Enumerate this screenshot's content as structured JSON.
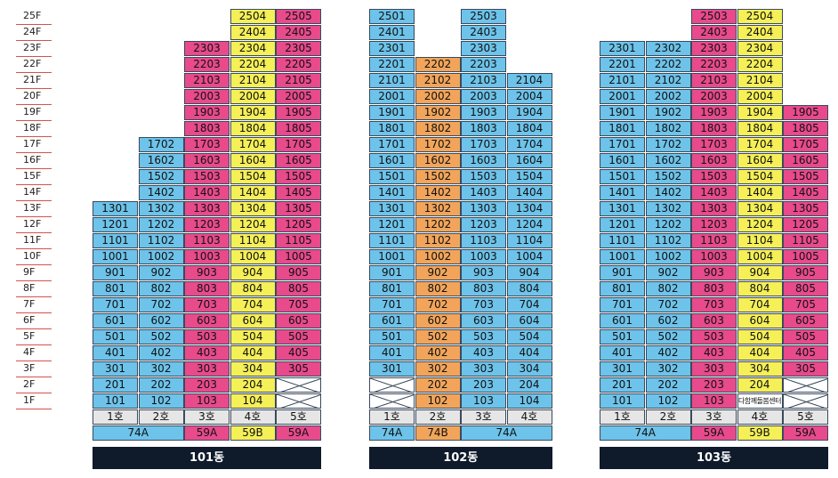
{
  "floors": [
    "25F",
    "24F",
    "23F",
    "22F",
    "21F",
    "20F",
    "19F",
    "18F",
    "17F",
    "16F",
    "15F",
    "14F",
    "13F",
    "12F",
    "11F",
    "10F",
    "9F",
    "8F",
    "7F",
    "6F",
    "5F",
    "4F",
    "3F",
    "2F",
    "1F"
  ],
  "colors": {
    "blue": "#6dc3ea",
    "pink": "#e84a8c",
    "yellow": "#f5ef58",
    "orange": "#f2a55a",
    "gray": "#e6e6e6",
    "bar": "#0f1a2b"
  },
  "buildings": [
    {
      "name": "101동",
      "lines": [
        {
          "label": "1호",
          "color": "blue",
          "top": 13,
          "bottom": 1,
          "suffix": "01"
        },
        {
          "label": "2호",
          "color": "blue",
          "top": 17,
          "bottom": 1,
          "suffix": "02"
        },
        {
          "label": "3호",
          "color": "pink",
          "top": 23,
          "bottom": 1,
          "suffix": "03"
        },
        {
          "label": "4호",
          "color": "yellow",
          "top": 25,
          "bottom": 1,
          "suffix": "04"
        },
        {
          "label": "5호",
          "color": "pink",
          "top": 25,
          "bottom": 3,
          "suffix": "05",
          "crossed": [
            2,
            1
          ]
        }
      ],
      "types": [
        {
          "label": "74A",
          "span": 2,
          "color": "blue"
        },
        {
          "label": "59A",
          "span": 1,
          "color": "pink"
        },
        {
          "label": "59B",
          "span": 1,
          "color": "yellow"
        },
        {
          "label": "59A",
          "span": 1,
          "color": "pink"
        }
      ]
    },
    {
      "name": "102동",
      "lines": [
        {
          "label": "1호",
          "color": "blue",
          "top": 25,
          "bottom": 3,
          "suffix": "01",
          "crossed": [
            2,
            1
          ]
        },
        {
          "label": "2호",
          "color": "orange",
          "top": 22,
          "bottom": 1,
          "suffix": "02"
        },
        {
          "label": "3호",
          "color": "blue",
          "top": 25,
          "bottom": 1,
          "suffix": "03"
        },
        {
          "label": "4호",
          "color": "blue",
          "top": 21,
          "bottom": 1,
          "suffix": "04"
        }
      ],
      "types": [
        {
          "label": "74A",
          "span": 1,
          "color": "blue"
        },
        {
          "label": "74B",
          "span": 1,
          "color": "orange"
        },
        {
          "label": "74A",
          "span": 2,
          "color": "blue"
        }
      ]
    },
    {
      "name": "103동",
      "lines": [
        {
          "label": "1호",
          "color": "blue",
          "top": 23,
          "bottom": 1,
          "suffix": "01"
        },
        {
          "label": "2호",
          "color": "blue",
          "top": 23,
          "bottom": 1,
          "suffix": "02"
        },
        {
          "label": "3호",
          "color": "pink",
          "top": 25,
          "bottom": 1,
          "suffix": "03"
        },
        {
          "label": "4호",
          "color": "yellow",
          "top": 25,
          "bottom": 2,
          "suffix": "04",
          "special": {
            "floor": 1,
            "text": "다함께돌봄센터"
          }
        },
        {
          "label": "5호",
          "color": "pink",
          "top": 19,
          "bottom": 3,
          "suffix": "05",
          "crossed": [
            2,
            1
          ]
        }
      ],
      "types": [
        {
          "label": "74A",
          "span": 2,
          "color": "blue"
        },
        {
          "label": "59A",
          "span": 1,
          "color": "pink"
        },
        {
          "label": "59B",
          "span": 1,
          "color": "yellow"
        },
        {
          "label": "59A",
          "span": 1,
          "color": "pink"
        }
      ]
    }
  ]
}
